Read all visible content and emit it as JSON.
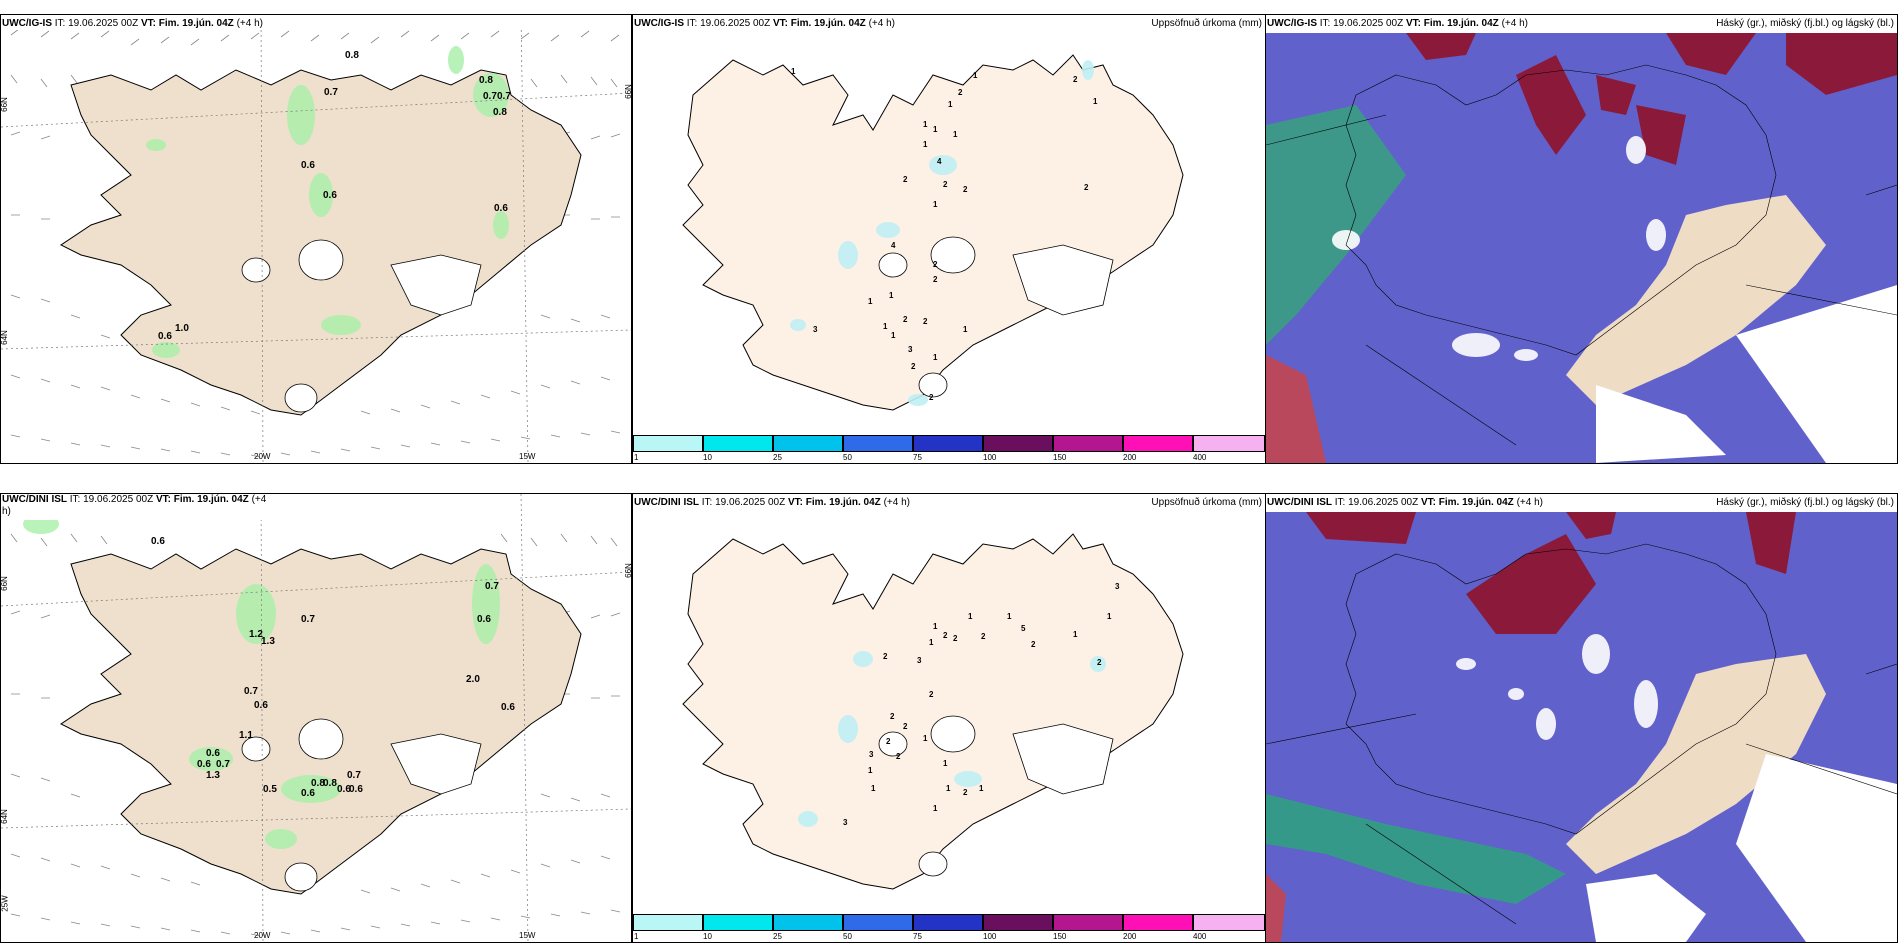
{
  "panels": {
    "wind_top": {
      "model": "UWC/IG-IS",
      "it": "IT: 19.06.2025 00Z",
      "vt": "VT: Fim. 19.jún. 04Z",
      "lead": "(+4 h)",
      "values": [
        "0.8",
        "0.7",
        "0.8",
        "0.7",
        "0.7",
        "0.8",
        "0.6",
        "0.6",
        "0.6",
        "1.0",
        "0.6"
      ]
    },
    "precip_top": {
      "model": "UWC/IG-IS",
      "it": "IT: 19.06.2025 00Z",
      "vt": "VT: Fim. 19.jún. 04Z",
      "lead": "(+4 h)",
      "subtitle": "Uppsöfnuð úrkoma (mm)",
      "values": [
        "1",
        "1",
        "2",
        "1",
        "2",
        "1",
        "1",
        "1",
        "1",
        "4",
        "2",
        "2",
        "1",
        "2",
        "1",
        "2",
        "4",
        "2",
        "2",
        "1",
        "1",
        "1",
        "3",
        "1",
        "2",
        "2",
        "1",
        "3",
        "1",
        "2",
        "2"
      ]
    },
    "cloud_top": {
      "model": "UWC/IG-IS",
      "it": "IT: 19.06.2025 00Z",
      "vt": "VT: Fim. 19.jún. 04Z",
      "lead": "(+4 h)",
      "subtitle": "Háský (gr.), miðský (fj.bl.) og lágský (bl.)"
    },
    "wind_bot": {
      "model": "UWC/DINI ISL",
      "it": "IT: 19.06.2025 00Z",
      "vt": "VT: Fim. 19.jún. 04Z",
      "lead": "(+4",
      "lead2": "h)",
      "values": [
        "0.6",
        "0.7",
        "1.2",
        "1.3",
        "0.7",
        "0.6",
        "2.0",
        "0.6",
        "0.7",
        "0.6",
        "1.1",
        "0.6",
        "0.6",
        "0.7",
        "1.3",
        "0.5",
        "0.8",
        "0.8",
        "0.6",
        "0.6",
        "0.7",
        "0.6"
      ]
    },
    "precip_bot": {
      "model": "UWC/DINI ISL",
      "it": "IT: 19.06.2025 00Z",
      "vt": "VT: Fim. 19.jún. 04Z",
      "lead": "(+4 h)",
      "subtitle": "Uppsöfnuð úrkoma (mm)",
      "values": [
        "3",
        "1",
        "1",
        "2",
        "1",
        "2",
        "2",
        "1",
        "3",
        "1",
        "5",
        "1",
        "2",
        "2",
        "2",
        "2",
        "2",
        "2",
        "1",
        "2",
        "3",
        "2",
        "1",
        "1",
        "1",
        "1",
        "2",
        "1",
        "1",
        "3"
      ]
    },
    "cloud_bot": {
      "model": "UWC/DINI ISL",
      "it": "IT: 19.06.2025 00Z",
      "vt": "VT: Fim. 19.jún. 04Z",
      "lead": "(+4 h)",
      "subtitle": "Háský (gr.), miðský (fj.bl.) og lágský (bl.)"
    }
  },
  "axes": {
    "lat66": "66N",
    "lat64": "64N",
    "lon20": "20W",
    "lon15": "15W",
    "lon25": "25W"
  },
  "colorbar": {
    "labels": [
      "1",
      "10",
      "25",
      "50",
      "75",
      "100",
      "150",
      "200",
      "400"
    ],
    "colors": [
      "#b9f6f6",
      "#00e8ee",
      "#00c2ea",
      "#2f6ae8",
      "#2233c6",
      "#6a0e5e",
      "#b3168f",
      "#ff10b6",
      "#f6b2f0"
    ]
  },
  "colors": {
    "land": "#eee0cc",
    "precip_land": "#fdf0e4",
    "cloud_high": "#8b1a3a",
    "cloud_mid": "#4a4ac0",
    "cloud_low": "#6161cc",
    "cloud_green": "#2da37d"
  }
}
